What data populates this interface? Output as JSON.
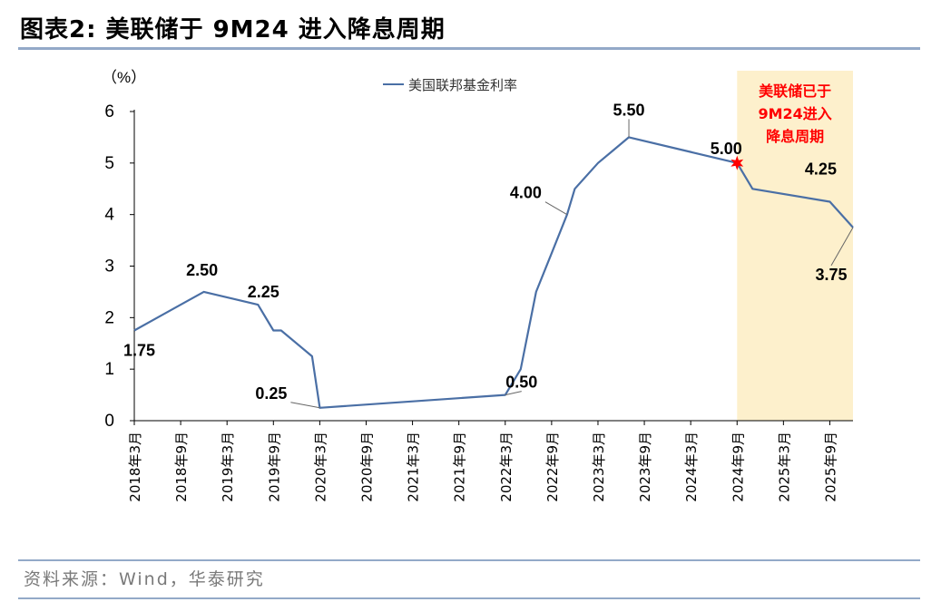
{
  "header": {
    "title": "图表2:  美联储于 9M24 进入降息周期"
  },
  "footer": {
    "source": "资料来源：Wind，华泰研究"
  },
  "colors": {
    "line": "#4a6fa5",
    "shade": "#fdf0cc",
    "marker": "#ff0000",
    "annotation": "#ff0000",
    "rule": "#93a9c8"
  },
  "chart_data": {
    "type": "line",
    "unit_label": "（%）",
    "ylim": [
      0,
      6
    ],
    "yticks": [
      0,
      1,
      2,
      3,
      4,
      5,
      6
    ],
    "xlim": [
      "2018-03",
      "2025-12"
    ],
    "x_tick_labels": [
      "2018年3月",
      "2018年9月",
      "2019年3月",
      "2019年9月",
      "2020年3月",
      "2020年9月",
      "2021年3月",
      "2021年9月",
      "2022年3月",
      "2022年9月",
      "2023年3月",
      "2023年9月",
      "2024年3月",
      "2024年9月",
      "2025年3月",
      "2025年9月"
    ],
    "series": [
      {
        "name": "美国联邦基金利率",
        "points": [
          [
            "2018-03",
            1.75
          ],
          [
            "2018-06",
            2.0
          ],
          [
            "2018-09",
            2.25
          ],
          [
            "2018-12",
            2.5
          ],
          [
            "2019-07",
            2.25
          ],
          [
            "2019-09",
            1.75
          ],
          [
            "2019-10",
            1.75
          ],
          [
            "2020-02",
            1.25
          ],
          [
            "2020-03",
            0.25
          ],
          [
            "2022-03",
            0.5
          ],
          [
            "2022-05",
            1.0
          ],
          [
            "2022-06",
            1.75
          ],
          [
            "2022-07",
            2.5
          ],
          [
            "2022-09",
            3.25
          ],
          [
            "2022-11",
            4.0
          ],
          [
            "2022-12",
            4.5
          ],
          [
            "2023-03",
            5.0
          ],
          [
            "2023-05",
            5.25
          ],
          [
            "2023-07",
            5.5
          ],
          [
            "2024-09",
            5.0
          ],
          [
            "2024-11",
            4.5
          ],
          [
            "2025-09",
            4.25
          ],
          [
            "2025-12",
            3.75
          ]
        ]
      }
    ],
    "data_labels": [
      {
        "x": "2018-03",
        "y": 1.75,
        "text": "1.75"
      },
      {
        "x": "2018-12",
        "y": 2.5,
        "text": "2.50"
      },
      {
        "x": "2019-07",
        "y": 2.25,
        "text": "2.25"
      },
      {
        "x": "2020-03",
        "y": 0.25,
        "text": "0.25"
      },
      {
        "x": "2022-03",
        "y": 0.5,
        "text": "0.50"
      },
      {
        "x": "2022-11",
        "y": 4.0,
        "text": "4.00"
      },
      {
        "x": "2023-07",
        "y": 5.5,
        "text": "5.50"
      },
      {
        "x": "2024-09",
        "y": 5.0,
        "text": "5.00"
      },
      {
        "x": "2025-09",
        "y": 4.25,
        "text": "4.25"
      },
      {
        "x": "2025-12",
        "y": 3.75,
        "text": "3.75"
      }
    ],
    "shaded_region": {
      "from": "2024-09",
      "to": "2025-12"
    },
    "highlight_point": {
      "x": "2024-09",
      "y": 5.0,
      "marker": "star"
    },
    "annotation": [
      "美联储已于",
      "9M24进入",
      "降息周期"
    ],
    "legend": {
      "position": "top-center"
    },
    "grid": false
  }
}
